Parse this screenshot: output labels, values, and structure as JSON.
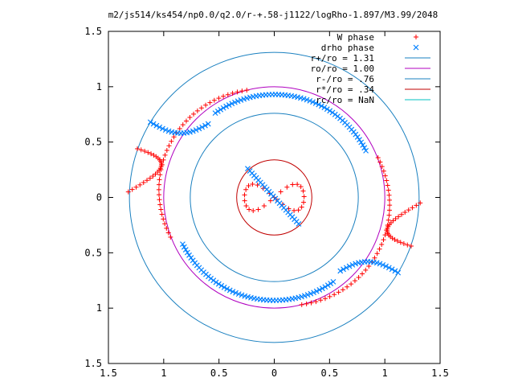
{
  "chart_data": {
    "type": "scatter",
    "title": "m2/js514/ks454/np0.0/q2.0/r-+.58-j1122/logRho-1.897/M3.99/2048",
    "xlim": [
      -1.5,
      1.5
    ],
    "ylim": [
      -1.5,
      1.5
    ],
    "x_ticks": [
      {
        "value": -1.5,
        "label": "1.5"
      },
      {
        "value": -1.0,
        "label": "1"
      },
      {
        "value": -0.5,
        "label": "0.5"
      },
      {
        "value": 0.0,
        "label": "0"
      },
      {
        "value": 0.5,
        "label": "0.5"
      },
      {
        "value": 1.0,
        "label": "1"
      },
      {
        "value": 1.5,
        "label": "1.5"
      }
    ],
    "y_ticks": [
      {
        "value": 1.5,
        "label": "1.5"
      },
      {
        "value": 1.0,
        "label": "1"
      },
      {
        "value": 0.5,
        "label": "0.5"
      },
      {
        "value": 0.0,
        "label": "0"
      },
      {
        "value": -0.5,
        "label": "0.5"
      },
      {
        "value": -1.0,
        "label": "1"
      },
      {
        "value": -1.5,
        "label": "1.5"
      }
    ],
    "legend_position": "top-right",
    "series": [
      {
        "name": "W phase",
        "marker": "plus",
        "color": "#ff0000"
      },
      {
        "name": "drho phase",
        "marker": "cross",
        "color": "#0080ff"
      }
    ],
    "circles": [
      {
        "name": "r+/ro = 1.31",
        "radius": 1.31,
        "color": "#1a80c0"
      },
      {
        "name": "ro/ro = 1.00",
        "radius": 1.0,
        "color": "#b000c0"
      },
      {
        "name": "r-/ro = .76",
        "radius": 0.76,
        "color": "#1a80c0"
      },
      {
        "name": "r*/ro = .34",
        "radius": 0.34,
        "color": "#c00000"
      },
      {
        "name": "rc/ro = NaN",
        "radius": null,
        "color": "#00c0c0"
      }
    ]
  }
}
